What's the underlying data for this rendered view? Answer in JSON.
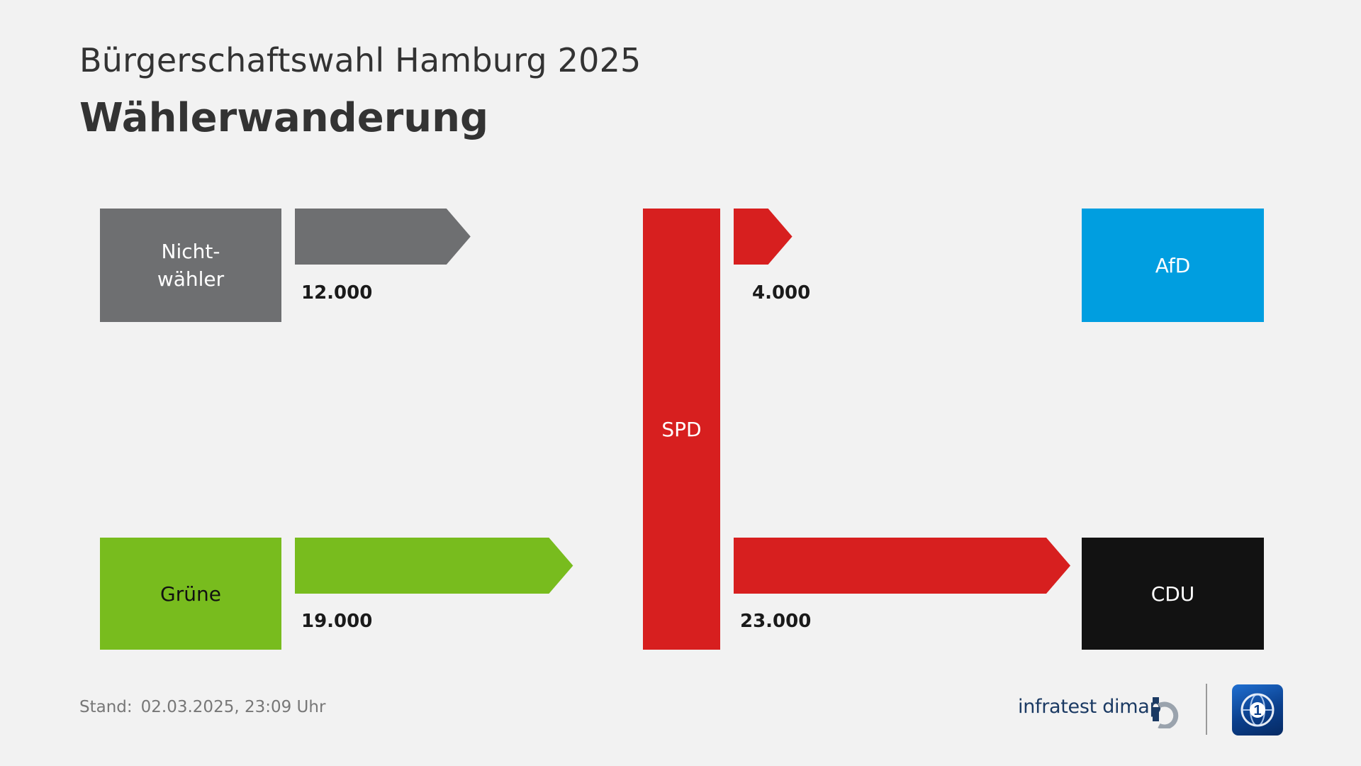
{
  "header": {
    "subtitle": "Bürgerschaftswahl Hamburg 2025",
    "title": "Wählerwanderung"
  },
  "chart_data": {
    "type": "flow",
    "center_party": {
      "name": "SPD",
      "color": "#d71f1f"
    },
    "flows": [
      {
        "from": "Nichtwähler",
        "to": "SPD",
        "value": 12000,
        "label": "12.000",
        "color": "#6e6f71"
      },
      {
        "from": "Grüne",
        "to": "SPD",
        "value": 19000,
        "label": "19.000",
        "color": "#78bc1e"
      },
      {
        "from": "SPD",
        "to": "AfD",
        "value": 4000,
        "label": "4.000",
        "color": "#d71f1f"
      },
      {
        "from": "SPD",
        "to": "CDU",
        "value": 23000,
        "label": "23.000",
        "color": "#d71f1f"
      }
    ],
    "boxes": {
      "nichtwaehler": {
        "line1": "Nicht-",
        "line2": "wähler",
        "color": "#6e6f71",
        "text_color": "#ffffff"
      },
      "gruene": {
        "label": "Grüne",
        "color": "#78bc1e",
        "text_color": "#111111"
      },
      "spd": {
        "label": "SPD",
        "color": "#d71f1f",
        "text_color": "#ffffff"
      },
      "afd": {
        "label": "AfD",
        "color": "#009ee0",
        "text_color": "#ffffff"
      },
      "cdu": {
        "label": "CDU",
        "color": "#121212",
        "text_color": "#ffffff"
      }
    }
  },
  "footer": {
    "stand_label": "Stand:",
    "stand_value": "02.03.2025, 23:09 Uhr",
    "brand": "infratest dimap",
    "brand_icon": "infratest-dimap-logo",
    "tv_icon": "tagesschau-logo"
  }
}
